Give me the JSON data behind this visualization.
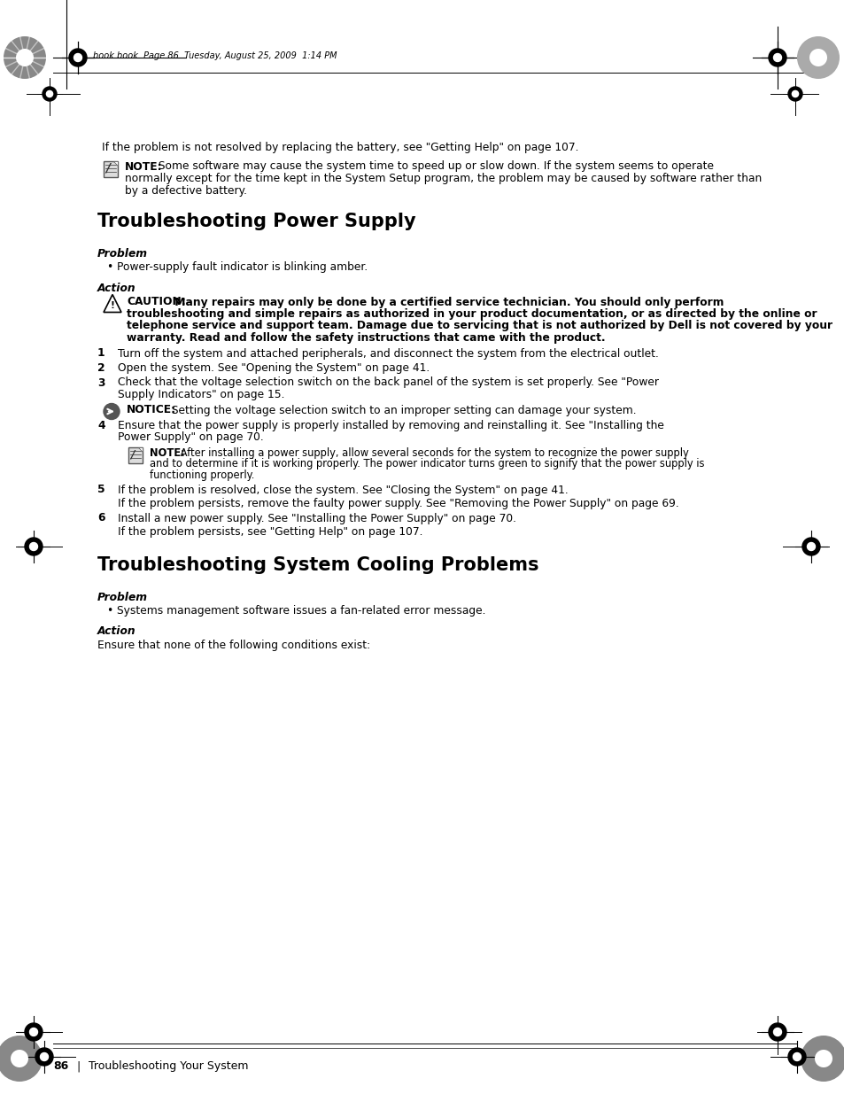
{
  "bg_color": "#ffffff",
  "page_header": "book.book  Page 86  Tuesday, August 25, 2009  1:14 PM",
  "footer_page_num": "86",
  "footer_text": "Troubleshooting Your System",
  "intro_text": "If the problem is not resolved by replacing the battery, see \"Getting Help\" on page 107.",
  "note1_label": "NOTE:",
  "note1_lines": [
    " Some software may cause the system time to speed up or slow down. If the system seems to operate",
    "normally except for the time kept in the System Setup program, the problem may be caused by software rather than",
    "by a defective battery."
  ],
  "section1_title": "Troubleshooting Power Supply",
  "problem_label1": "Problem",
  "bullet1": "Power-supply fault indicator is blinking amber.",
  "action_label1": "Action",
  "caution_label": "CAUTION:",
  "caution_lines": [
    " Many repairs may only be done by a certified service technician. You should only perform",
    "troubleshooting and simple repairs as authorized in your product documentation, or as directed by the online or",
    "telephone service and support team. Damage due to servicing that is not authorized by Dell is not covered by your",
    "warranty. Read and follow the safety instructions that came with the product."
  ],
  "step1": "Turn off the system and attached peripherals, and disconnect the system from the electrical outlet.",
  "step2": "Open the system. See \"Opening the System\" on page 41.",
  "step3_line1": "Check that the voltage selection switch on the back panel of the system is set properly. See \"Power",
  "step3_line2": "Supply Indicators\" on page 15.",
  "notice_label": "NOTICE:",
  "notice_text": " Setting the voltage selection switch to an improper setting can damage your system.",
  "step4_line1": "Ensure that the power supply is properly installed by removing and reinstalling it. See \"Installing the",
  "step4_line2": "Power Supply\" on page 70.",
  "note2_label": "NOTE:",
  "note2_lines": [
    " After installing a power supply, allow several seconds for the system to recognize the power supply",
    "and to determine if it is working properly. The power indicator turns green to signify that the power supply is",
    "functioning properly."
  ],
  "step5_line1": "If the problem is resolved, close the system. See \"Closing the System\" on page 41.",
  "step5_line2": "If the problem persists, remove the faulty power supply. See \"Removing the Power Supply\" on page 69.",
  "step6_line1": "Install a new power supply. See \"Installing the Power Supply\" on page 70.",
  "step6_line2": "If the problem persists, see \"Getting Help\" on page 107.",
  "section2_title": "Troubleshooting System Cooling Problems",
  "problem_label2": "Problem",
  "bullet2": "Systems management software issues a fan-related error message.",
  "action_label2": "Action",
  "action2_text": "Ensure that none of the following conditions exist:"
}
